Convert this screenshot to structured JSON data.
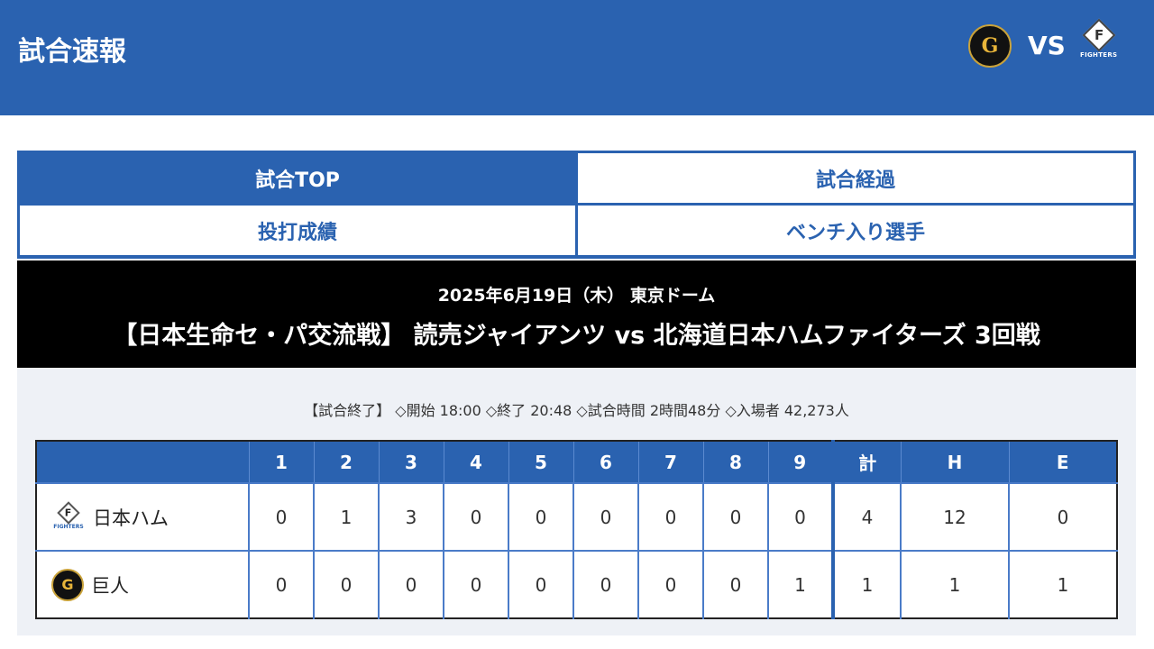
{
  "header": {
    "title": "試合速報",
    "vs": "VS",
    "home_logo": "giants-logo",
    "away_logo": "fighters-logo",
    "fighters_logo_text": "FIGHTERS",
    "giants_logo_text": "G"
  },
  "tabs": [
    {
      "label": "試合TOP",
      "active": true
    },
    {
      "label": "試合経過",
      "active": false
    },
    {
      "label": "投打成績",
      "active": false
    },
    {
      "label": "ベンチ入り選手",
      "active": false
    }
  ],
  "banner": {
    "date": "2025年6月19日（木） 東京ドーム",
    "game": "【日本生命セ・パ交流戦】 読売ジャイアンツ vs 北海道日本ハムファイターズ 3回戦"
  },
  "status": "【試合終了】 ◇開始 18:00 ◇終了 20:48 ◇試合時間 2時間48分 ◇入場者 42,273人",
  "scoreboard": {
    "headers": [
      "1",
      "2",
      "3",
      "4",
      "5",
      "6",
      "7",
      "8",
      "9",
      "計",
      "H",
      "E"
    ],
    "rows": [
      {
        "team": "日本ハム",
        "logo": "fighters-logo",
        "scores": [
          "0",
          "1",
          "3",
          "0",
          "0",
          "0",
          "0",
          "0",
          "0",
          "4",
          "12",
          "0"
        ]
      },
      {
        "team": "巨人",
        "logo": "giants-logo",
        "scores": [
          "0",
          "0",
          "0",
          "0",
          "0",
          "0",
          "0",
          "0",
          "1",
          "1",
          "1",
          "1"
        ]
      }
    ]
  },
  "colors": {
    "primary": "#2a62b0",
    "banner": "#000000",
    "panel": "#eef1f6"
  }
}
